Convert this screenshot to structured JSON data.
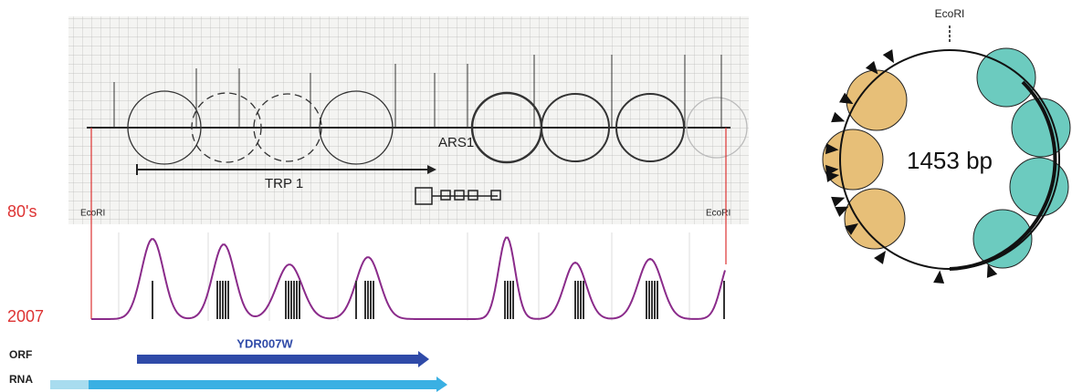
{
  "map_80s": {
    "label": "80's",
    "ecori_left": "EcoRI",
    "ecori_right": "EcoRI",
    "trp1": "TRP 1",
    "ars1": "ARS1"
  },
  "profile_2007": {
    "label": "2007"
  },
  "tracks": {
    "orf_label": "ORF",
    "orf_name": "YDR007W",
    "rna_label": "RNA"
  },
  "plasmid": {
    "ecori": "EcoRI",
    "size": "1453 bp"
  }
}
